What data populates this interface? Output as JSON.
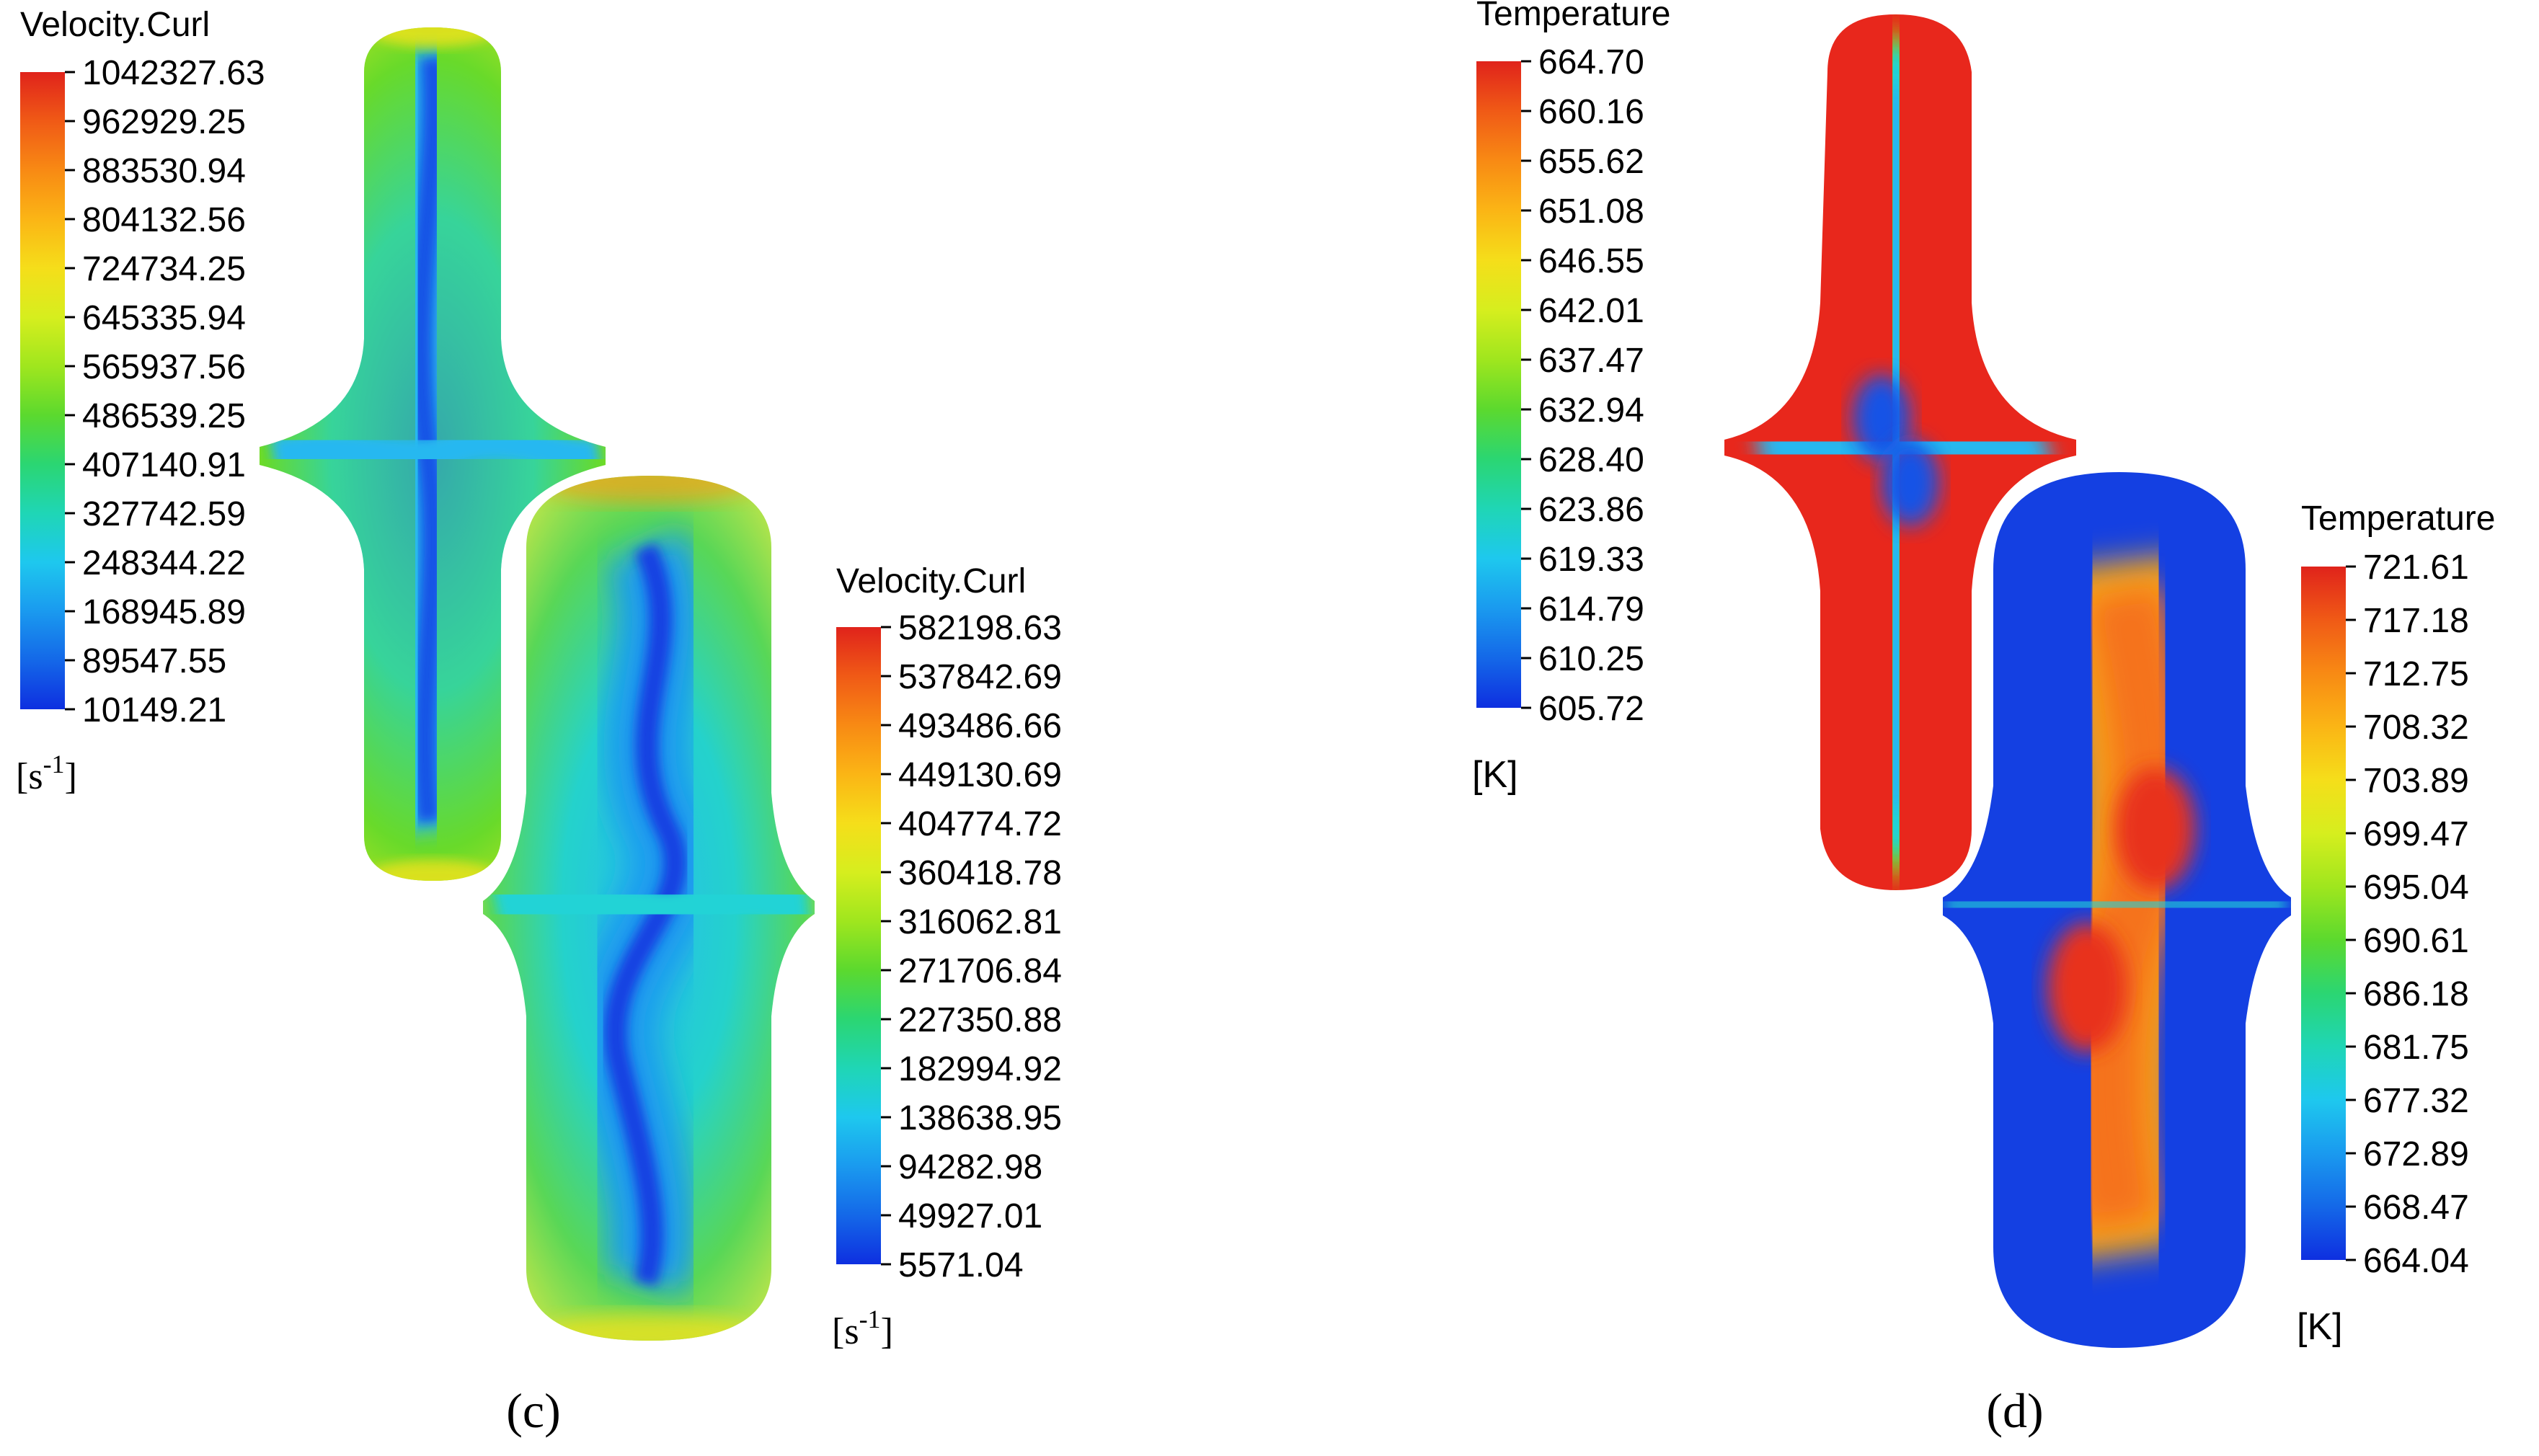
{
  "panels": [
    {
      "caption": "(c)",
      "legends": [
        {
          "title": "Velocity.Curl",
          "unit": "[s",
          "unit_exp": "-1",
          "unit_close": "]",
          "labels": [
            "1042327.63",
            "962929.25",
            "883530.94",
            "804132.56",
            "724734.25",
            "645335.94",
            "565937.56",
            "486539.25",
            "407140.91",
            "327742.59",
            "248344.22",
            "168945.89",
            "89547.55",
            "10149.21"
          ]
        },
        {
          "title": "Velocity.Curl",
          "unit": "[s",
          "unit_exp": "-1",
          "unit_close": "]",
          "labels": [
            "582198.63",
            "537842.69",
            "493486.66",
            "449130.69",
            "404774.72",
            "360418.78",
            "316062.81",
            "271706.84",
            "227350.88",
            "182994.92",
            "138638.95",
            "94282.98",
            "49927.01",
            "5571.04"
          ]
        }
      ]
    },
    {
      "caption": "(d)",
      "legends": [
        {
          "title": "Temperature",
          "unit": "[K]",
          "labels": [
            "664.70",
            "660.16",
            "655.62",
            "651.08",
            "646.55",
            "642.01",
            "637.47",
            "632.94",
            "628.40",
            "623.86",
            "619.33",
            "614.79",
            "610.25",
            "605.72"
          ]
        },
        {
          "title": "Temperature",
          "unit": "[K]",
          "labels": [
            "721.61",
            "717.18",
            "712.75",
            "708.32",
            "703.89",
            "699.47",
            "695.04",
            "690.61",
            "686.18",
            "681.75",
            "677.32",
            "672.89",
            "668.47",
            "664.04"
          ]
        }
      ]
    }
  ],
  "colors": {
    "scale": [
      "#e0231b",
      "#f05a16",
      "#f88a14",
      "#fbb515",
      "#f5de1a",
      "#d6ee1e",
      "#9fe61e",
      "#5cd92e",
      "#2bd672",
      "#1fd6b5",
      "#1ec8ee",
      "#1a9aef",
      "#1468e8",
      "#0e2fe0"
    ],
    "red": "#e8271c",
    "orange": "#f8a018",
    "yellow": "#f0e21c",
    "green": "#5fd82a",
    "cyan": "#22d3d6",
    "lightblue": "#27b8f0",
    "blue": "#1553e6",
    "deepblue": "#0c2ad8"
  }
}
